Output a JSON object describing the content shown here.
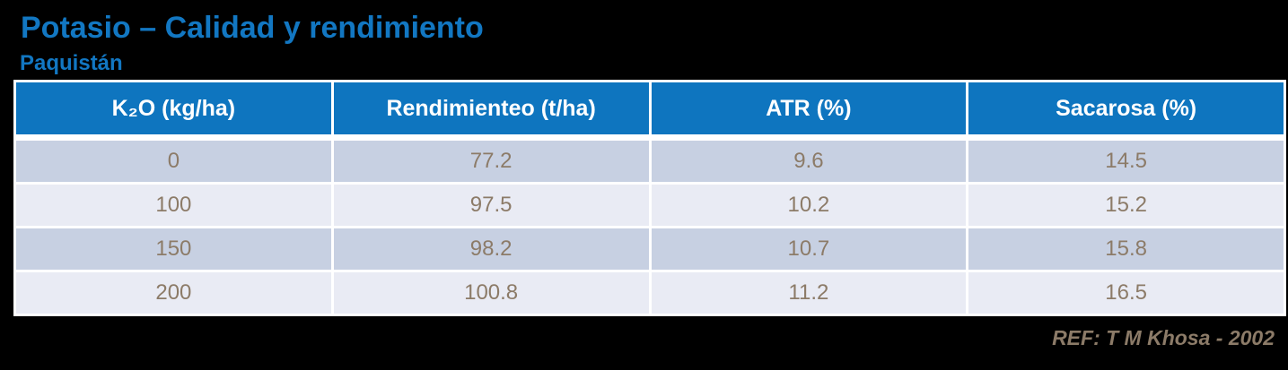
{
  "slide": {
    "title": "Potasio – Calidad y rendimiento",
    "subtitle": "Paquistán",
    "reference": "REF: T M Khosa - 2002"
  },
  "colors": {
    "background": "#000000",
    "title_blue": "#1277C2",
    "header_bg": "#0E75BF",
    "header_text": "#FFFFFF",
    "row_dark": "#C7D0E2",
    "row_light": "#E9EBF4",
    "cell_text": "#8C7B68",
    "grid": "#FFFFFF"
  },
  "chart_data": {
    "type": "table",
    "title": "Potasio – Calidad y rendimiento",
    "subtitle": "Paquistán",
    "columns": [
      "K₂O (kg/ha)",
      "Rendimienteo (t/ha)",
      "ATR (%)",
      "Sacarosa (%)"
    ],
    "rows": [
      [
        "0",
        "77.2",
        "9.6",
        "14.5"
      ],
      [
        "100",
        "97.5",
        "10.2",
        "15.2"
      ],
      [
        "150",
        "98.2",
        "10.7",
        "15.8"
      ],
      [
        "200",
        "100.8",
        "11.2",
        "16.5"
      ]
    ],
    "reference": "REF: T M Khosa - 2002",
    "layout": {
      "header_position": "top",
      "striped_rows": true,
      "grid": "white-gaps"
    }
  }
}
